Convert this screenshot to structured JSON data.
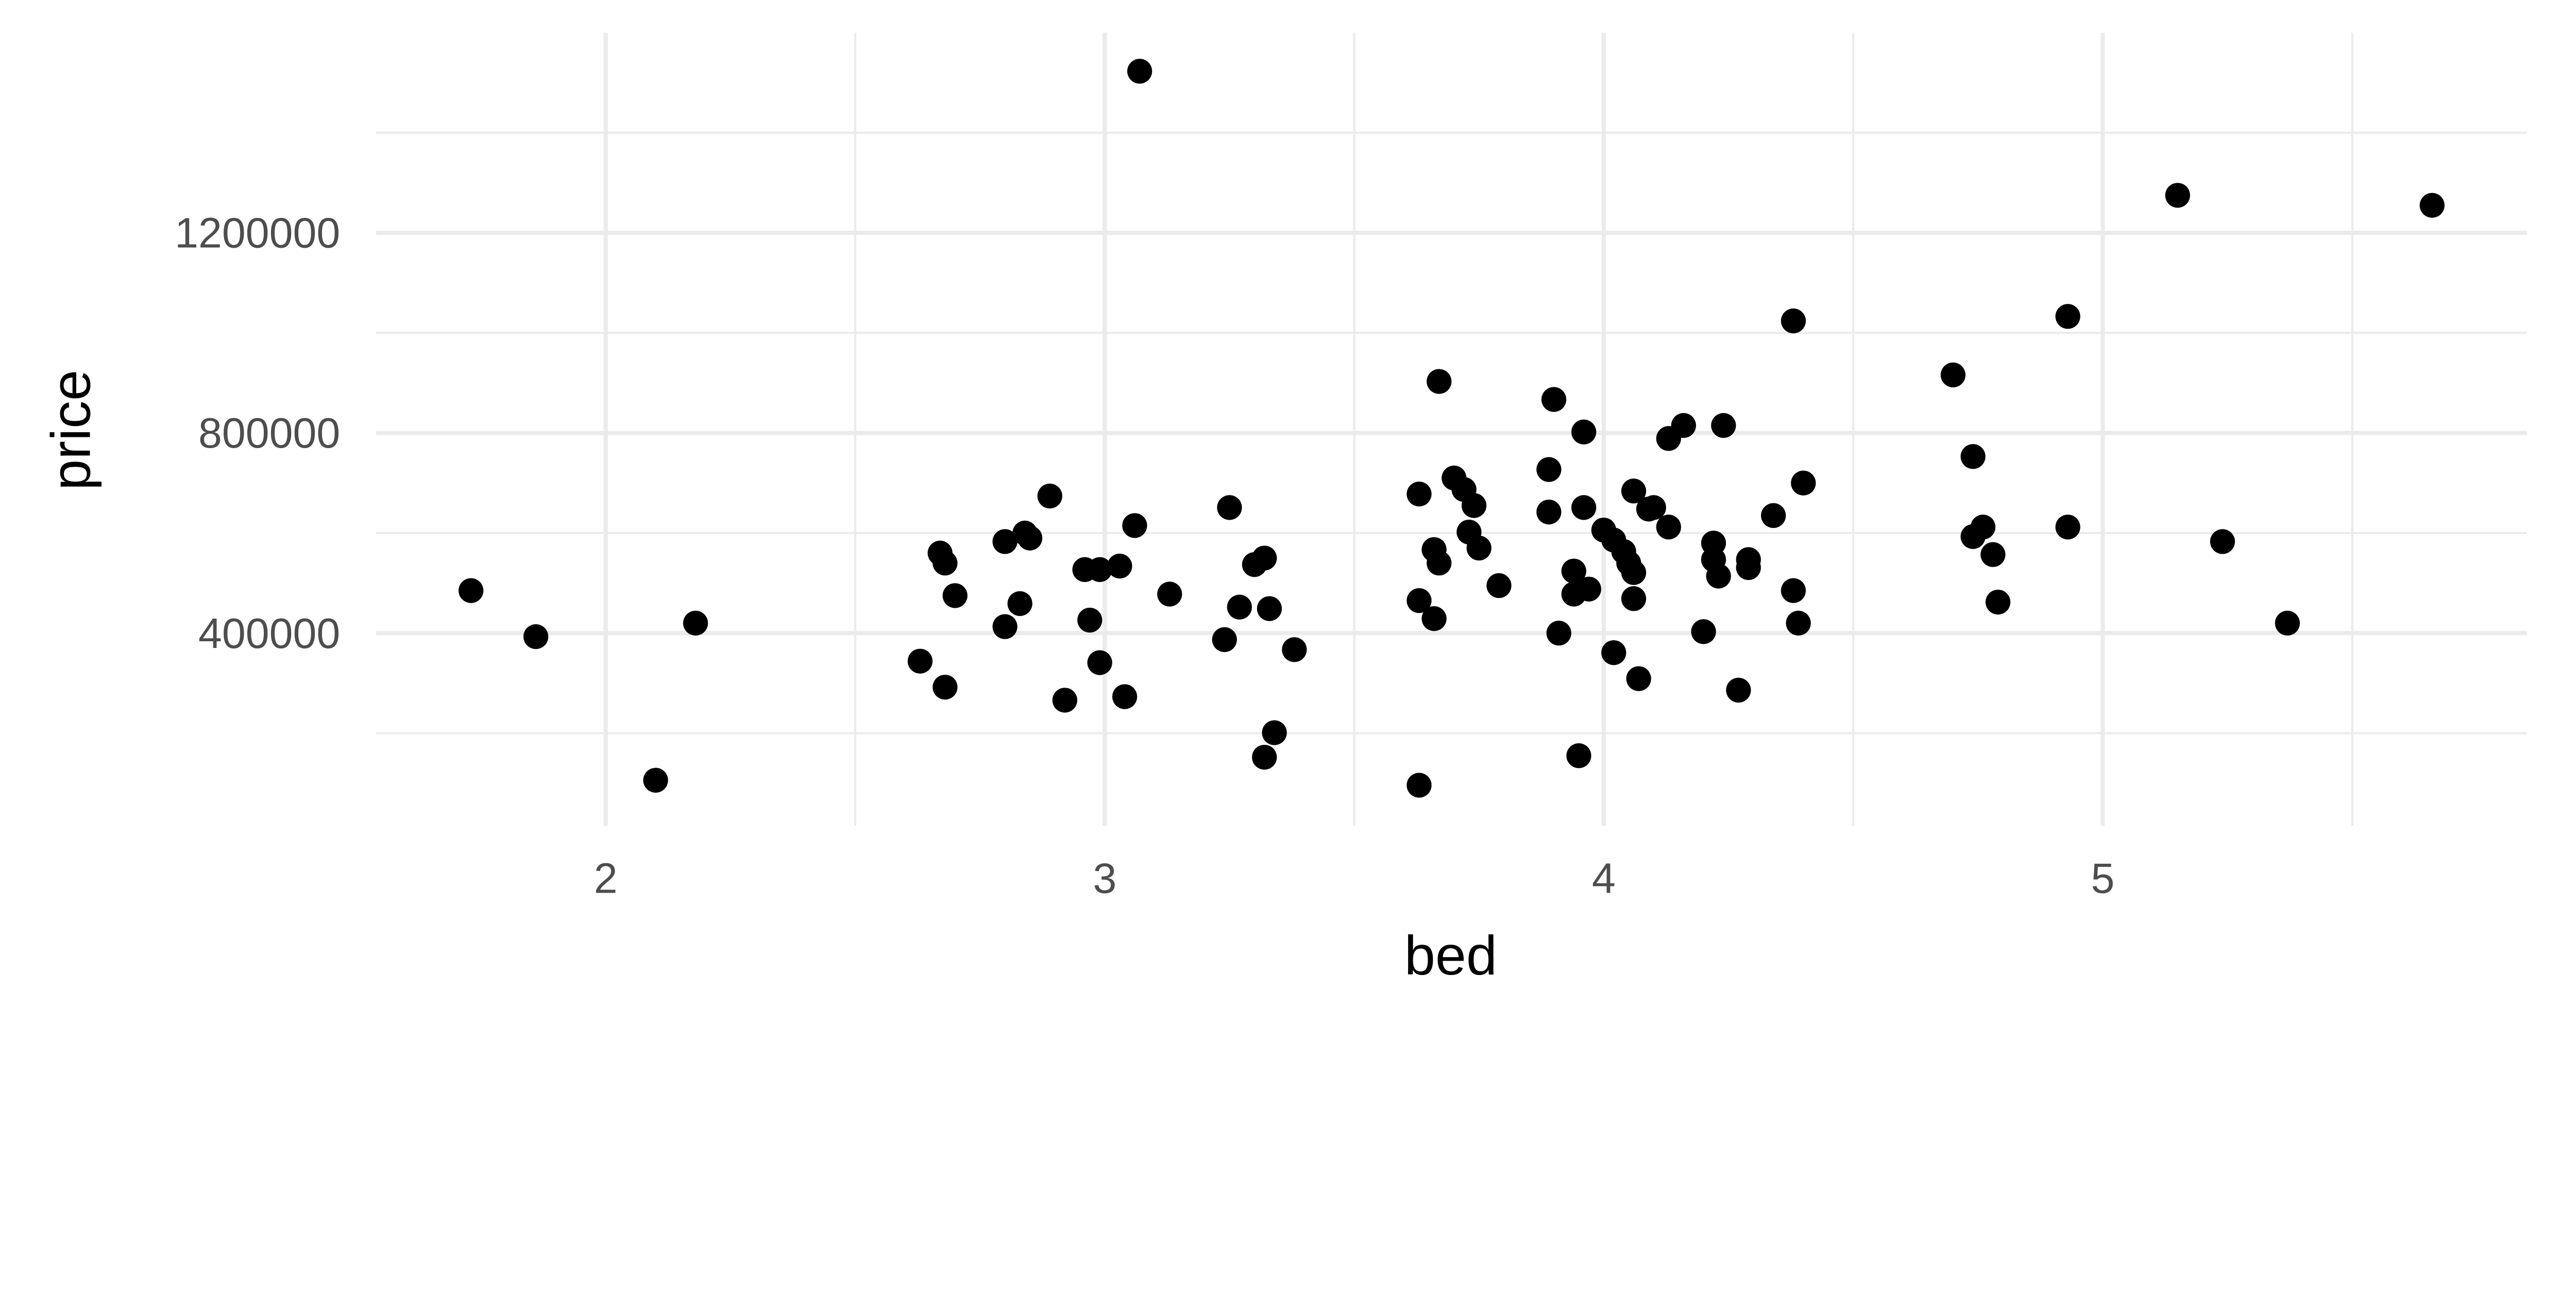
{
  "chart_data": {
    "type": "scatter",
    "title": "",
    "xlabel": "bed",
    "ylabel": "price",
    "xlim": [
      1.54,
      5.85
    ],
    "ylim": [
      15000,
      1600000
    ],
    "x_ticks": [
      2,
      3,
      4,
      5
    ],
    "x_tick_labels": [
      "2",
      "3",
      "4",
      "5"
    ],
    "x_minor": [
      2.5,
      3.5,
      4.5,
      5.5
    ],
    "y_ticks": [
      400000,
      800000,
      1200000
    ],
    "y_tick_labels": [
      "400000",
      "800000",
      "1200000"
    ],
    "y_minor": [
      200000,
      600000,
      1000000,
      1400000
    ],
    "grid": true,
    "point_color": "#000000",
    "grid_color": "#ebebeb",
    "points": [
      [
        1.73,
        485000
      ],
      [
        1.86,
        393000
      ],
      [
        2.1,
        106000
      ],
      [
        2.18,
        420000
      ],
      [
        2.63,
        344000
      ],
      [
        2.67,
        560000
      ],
      [
        2.68,
        540000
      ],
      [
        2.68,
        292000
      ],
      [
        2.7,
        475000
      ],
      [
        2.8,
        583000
      ],
      [
        2.8,
        413000
      ],
      [
        2.83,
        459000
      ],
      [
        2.84,
        600000
      ],
      [
        2.85,
        590000
      ],
      [
        2.89,
        674000
      ],
      [
        2.92,
        266000
      ],
      [
        2.96,
        527000
      ],
      [
        2.97,
        426000
      ],
      [
        2.99,
        527000
      ],
      [
        2.99,
        341000
      ],
      [
        3.03,
        534000
      ],
      [
        3.04,
        273000
      ],
      [
        3.06,
        615000
      ],
      [
        3.07,
        1523000
      ],
      [
        3.13,
        478000
      ],
      [
        3.24,
        387000
      ],
      [
        3.25,
        651000
      ],
      [
        3.27,
        452000
      ],
      [
        3.3,
        537000
      ],
      [
        3.32,
        550000
      ],
      [
        3.32,
        152000
      ],
      [
        3.33,
        449000
      ],
      [
        3.34,
        201000
      ],
      [
        3.38,
        367000
      ],
      [
        3.63,
        96000
      ],
      [
        3.63,
        465000
      ],
      [
        3.63,
        678000
      ],
      [
        3.66,
        567000
      ],
      [
        3.66,
        429000
      ],
      [
        3.67,
        903000
      ],
      [
        3.67,
        540000
      ],
      [
        3.7,
        710000
      ],
      [
        3.72,
        687000
      ],
      [
        3.73,
        602000
      ],
      [
        3.74,
        655000
      ],
      [
        3.75,
        570000
      ],
      [
        3.79,
        495000
      ],
      [
        3.89,
        727000
      ],
      [
        3.89,
        642000
      ],
      [
        3.9,
        867000
      ],
      [
        3.91,
        400000
      ],
      [
        3.94,
        478000
      ],
      [
        3.94,
        524000
      ],
      [
        3.95,
        155000
      ],
      [
        3.96,
        651000
      ],
      [
        3.96,
        802000
      ],
      [
        3.97,
        488000
      ],
      [
        4.0,
        606000
      ],
      [
        4.02,
        361000
      ],
      [
        4.02,
        586000
      ],
      [
        4.04,
        563000
      ],
      [
        4.05,
        540000
      ],
      [
        4.06,
        469000
      ],
      [
        4.06,
        521000
      ],
      [
        4.06,
        684000
      ],
      [
        4.07,
        309000
      ],
      [
        4.09,
        648000
      ],
      [
        4.1,
        651000
      ],
      [
        4.13,
        789000
      ],
      [
        4.13,
        612000
      ],
      [
        4.16,
        815000
      ],
      [
        4.2,
        403000
      ],
      [
        4.22,
        580000
      ],
      [
        4.22,
        547000
      ],
      [
        4.23,
        514000
      ],
      [
        4.24,
        815000
      ],
      [
        4.27,
        286000
      ],
      [
        4.29,
        547000
      ],
      [
        4.29,
        531000
      ],
      [
        4.34,
        635000
      ],
      [
        4.38,
        1024000
      ],
      [
        4.38,
        485000
      ],
      [
        4.39,
        420000
      ],
      [
        4.4,
        700000
      ],
      [
        4.7,
        916000
      ],
      [
        4.74,
        753000
      ],
      [
        4.74,
        593000
      ],
      [
        4.76,
        612000
      ],
      [
        4.78,
        557000
      ],
      [
        4.79,
        462000
      ],
      [
        4.93,
        1033000
      ],
      [
        4.93,
        612000
      ],
      [
        5.15,
        1275000
      ],
      [
        5.24,
        583000
      ],
      [
        5.37,
        420000
      ],
      [
        5.66,
        1255000
      ]
    ]
  }
}
